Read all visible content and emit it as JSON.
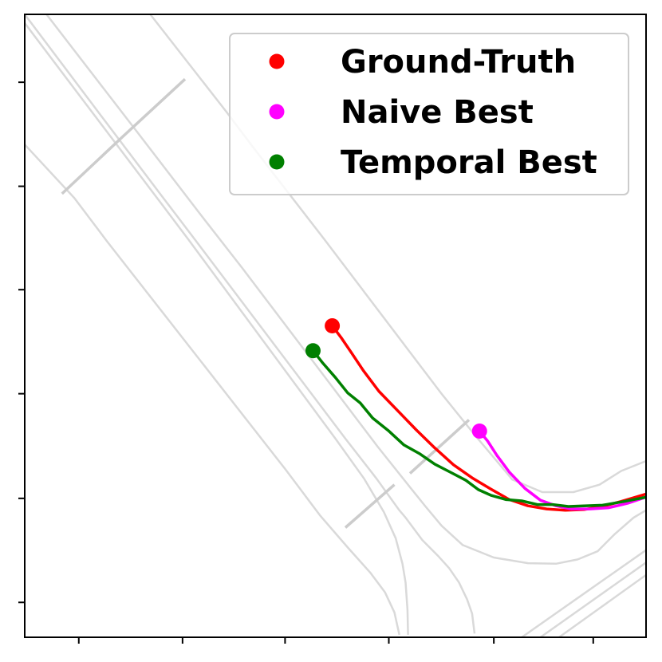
{
  "chart_data": {
    "type": "line",
    "title": "",
    "xlabel": "",
    "ylabel": "",
    "xlim": [
      0,
      100
    ],
    "ylim": [
      0,
      100
    ],
    "xticks": [
      8.7,
      25.4,
      41.9,
      58.6,
      75.5,
      91.5
    ],
    "yticks": [
      89.1,
      72.4,
      55.8,
      39.1,
      22.3,
      5.6
    ],
    "grid": false,
    "legend_position": "top-right",
    "series": [
      {
        "name": "Ground-Truth",
        "color": "#ff0000",
        "points": [
          [
            49.5,
            50.0
          ],
          [
            51.0,
            48.0
          ],
          [
            52.5,
            45.8
          ],
          [
            54.5,
            42.8
          ],
          [
            57.0,
            39.5
          ],
          [
            60.0,
            36.4
          ],
          [
            63.0,
            33.3
          ],
          [
            66.0,
            30.4
          ],
          [
            69.0,
            27.7
          ],
          [
            72.0,
            25.6
          ],
          [
            75.0,
            23.8
          ],
          [
            78.0,
            22.1
          ],
          [
            81.0,
            21.1
          ],
          [
            84.0,
            20.6
          ],
          [
            87.0,
            20.4
          ],
          [
            90.0,
            20.5
          ],
          [
            93.0,
            21.0
          ],
          [
            96.0,
            21.8
          ],
          [
            100.0,
            23.0
          ]
        ]
      },
      {
        "name": "Naive Best",
        "color": "#ff00ff",
        "points": [
          [
            73.2,
            33.1
          ],
          [
            74.5,
            31.5
          ],
          [
            76.0,
            29.2
          ],
          [
            78.0,
            26.5
          ],
          [
            80.5,
            23.9
          ],
          [
            83.0,
            22.0
          ],
          [
            85.5,
            21.1
          ],
          [
            88.0,
            20.6
          ],
          [
            91.0,
            20.6
          ],
          [
            94.0,
            20.8
          ],
          [
            97.0,
            21.5
          ],
          [
            100.0,
            22.5
          ]
        ]
      },
      {
        "name": "Temporal Best",
        "color": "#008000",
        "points": [
          [
            46.4,
            46.0
          ],
          [
            48.0,
            44.0
          ],
          [
            50.0,
            41.7
          ],
          [
            52.0,
            39.2
          ],
          [
            54.0,
            37.6
          ],
          [
            56.0,
            35.2
          ],
          [
            58.5,
            33.2
          ],
          [
            61.0,
            30.9
          ],
          [
            63.5,
            29.5
          ],
          [
            66.0,
            27.8
          ],
          [
            68.5,
            26.5
          ],
          [
            71.0,
            25.2
          ],
          [
            73.0,
            23.7
          ],
          [
            75.0,
            22.8
          ],
          [
            77.5,
            22.1
          ],
          [
            80.0,
            21.9
          ],
          [
            82.5,
            21.3
          ],
          [
            85.0,
            21.3
          ],
          [
            87.5,
            21.0
          ],
          [
            90.0,
            21.1
          ],
          [
            93.0,
            21.2
          ],
          [
            96.5,
            21.8
          ],
          [
            100.0,
            22.5
          ]
        ]
      }
    ],
    "background_roads": [
      [
        [
          0,
          100
        ],
        [
          12.6,
          83.3
        ],
        [
          22.4,
          70.4
        ],
        [
          27.2,
          64.1
        ],
        [
          51.6,
          31.9
        ],
        [
          56.6,
          25.5
        ],
        [
          60.2,
          20.5
        ],
        [
          61.3,
          19.2
        ],
        [
          64.0,
          15.6
        ],
        [
          66.5,
          13.1
        ],
        [
          68.3,
          11.1
        ],
        [
          69.9,
          8.8
        ],
        [
          71.2,
          6.1
        ],
        [
          72.0,
          3.8
        ],
        [
          72.4,
          0.6
        ]
      ],
      [
        [
          3.5,
          100
        ],
        [
          17.5,
          81.9
        ],
        [
          28.5,
          67.6
        ],
        [
          35.0,
          59.3
        ],
        [
          56.8,
          30.6
        ],
        [
          62.0,
          24.1
        ],
        [
          64.5,
          21.0
        ],
        [
          67.1,
          17.9
        ],
        [
          70.5,
          14.8
        ],
        [
          75.5,
          12.8
        ],
        [
          81.0,
          11.9
        ],
        [
          85.5,
          11.8
        ],
        [
          89.0,
          12.5
        ],
        [
          92.2,
          13.8
        ],
        [
          95.0,
          16.6
        ],
        [
          98.0,
          19.2
        ],
        [
          100.0,
          20.4
        ]
      ],
      [
        [
          0,
          98.6
        ],
        [
          11.3,
          83.7
        ],
        [
          21.4,
          70.4
        ],
        [
          26.3,
          63.9
        ],
        [
          50.0,
          31.9
        ],
        [
          54.6,
          25.5
        ],
        [
          57.8,
          20.1
        ],
        [
          59.7,
          15.9
        ],
        [
          60.8,
          11.8
        ],
        [
          61.3,
          8.8
        ],
        [
          61.6,
          4.4
        ],
        [
          61.7,
          0.4
        ]
      ],
      [
        [
          0,
          79.1
        ],
        [
          8.0,
          70.5
        ],
        [
          13.3,
          63.5
        ],
        [
          42.0,
          26.9
        ],
        [
          47.5,
          19.6
        ],
        [
          52.0,
          14.4
        ],
        [
          55.6,
          10.4
        ],
        [
          58.0,
          7.2
        ],
        [
          59.5,
          4.0
        ],
        [
          60.3,
          0.4
        ]
      ],
      [
        [
          20.2,
          100
        ],
        [
          32.5,
          84.3
        ],
        [
          36.5,
          79.0
        ],
        [
          48.2,
          63.9
        ],
        [
          67.0,
          39.2
        ],
        [
          72.5,
          32.4
        ],
        [
          78.5,
          25.3
        ],
        [
          83.3,
          23.3
        ],
        [
          88.3,
          23.3
        ],
        [
          92.5,
          24.5
        ],
        [
          96.0,
          26.7
        ],
        [
          100.0,
          28.3
        ]
      ],
      [
        [
          80.0,
          0
        ],
        [
          90.0,
          7.0
        ],
        [
          100.0,
          14.0
        ]
      ],
      [
        [
          83.0,
          0
        ],
        [
          100.0,
          12.0
        ]
      ],
      [
        [
          86.0,
          0
        ],
        [
          100.0,
          10.0
        ]
      ]
    ],
    "background_cross_segments": [
      [
        [
          6.0,
          71.2
        ],
        [
          15.8,
          80.4
        ],
        [
          25.8,
          89.6
        ]
      ],
      [
        [
          51.6,
          17.6
        ],
        [
          59.5,
          24.5
        ]
      ],
      [
        [
          62.0,
          26.3
        ],
        [
          71.5,
          34.9
        ]
      ]
    ]
  }
}
